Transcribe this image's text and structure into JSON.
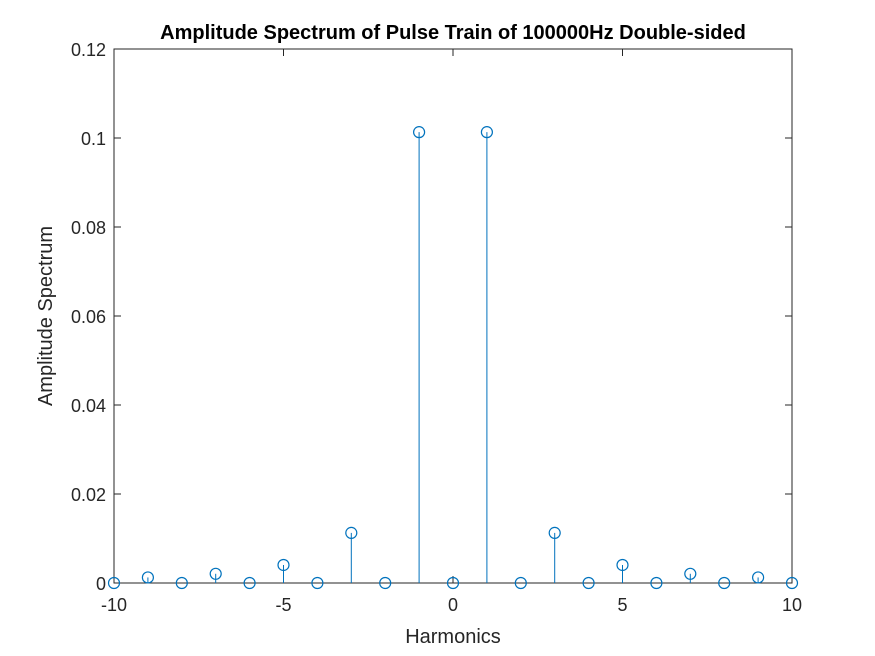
{
  "chart_data": {
    "type": "stem",
    "title": "Amplitude Spectrum of Pulse Train of 100000Hz Double-sided",
    "xlabel": "Harmonics",
    "ylabel": "Amplitude Spectrum",
    "xlim": [
      -10,
      10
    ],
    "ylim": [
      0,
      0.12
    ],
    "xticks": [
      "-10",
      "-5",
      "0",
      "5",
      "10"
    ],
    "yticks": [
      "0",
      "0.02",
      "0.04",
      "0.06",
      "0.08",
      "0.1",
      "0.12"
    ],
    "grid": false,
    "series_color": "#0072BD",
    "x": [
      -10,
      -9,
      -8,
      -7,
      -6,
      -5,
      -4,
      -3,
      -2,
      -1,
      0,
      1,
      2,
      3,
      4,
      5,
      6,
      7,
      8,
      9,
      10
    ],
    "values": [
      0,
      0.00125,
      0,
      0.00207,
      0,
      0.00405,
      0,
      0.01126,
      0,
      0.10132,
      0,
      0.10132,
      0,
      0.01126,
      0,
      0.00405,
      0,
      0.00207,
      0,
      0.00125,
      0
    ]
  }
}
